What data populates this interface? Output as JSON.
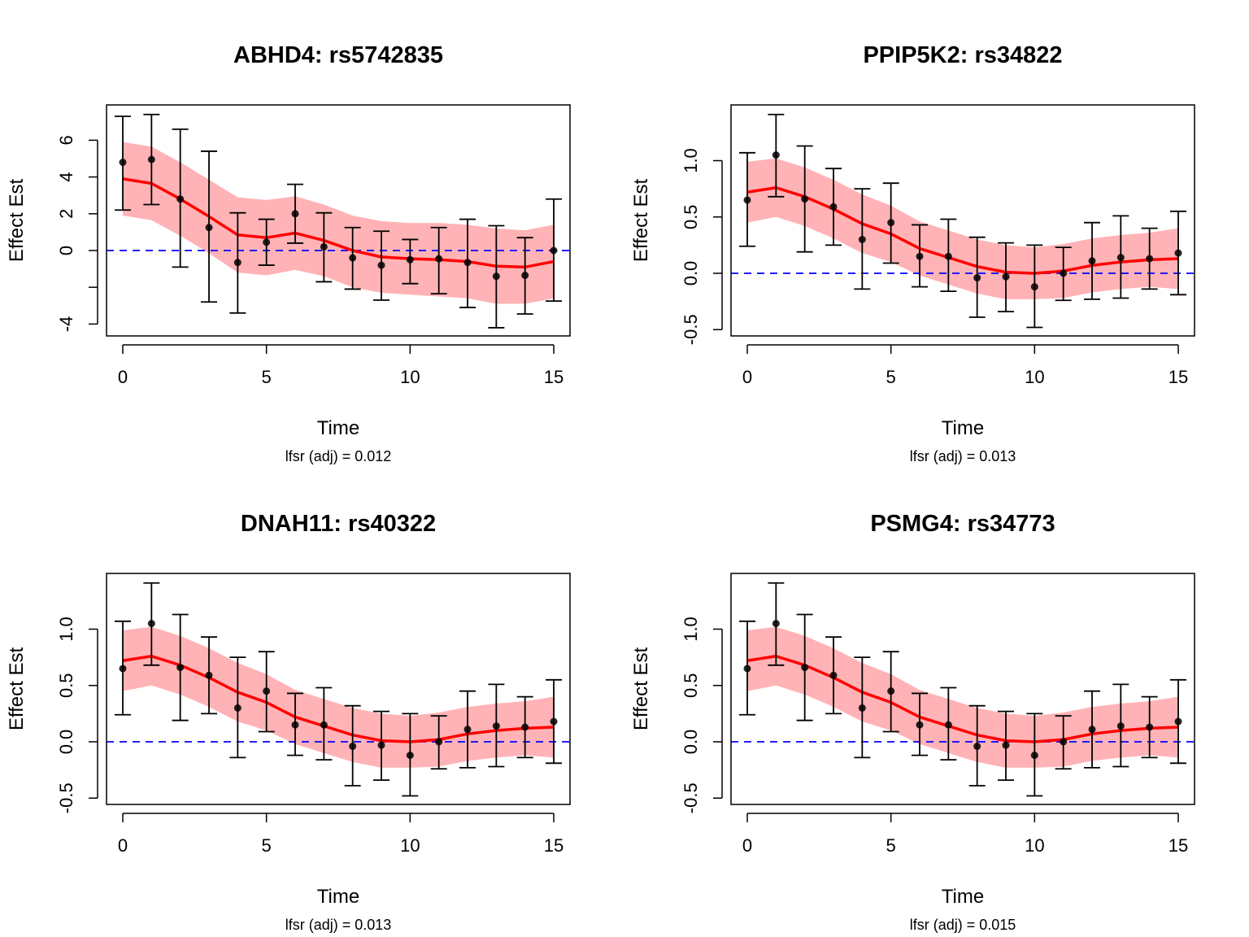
{
  "chart_data": [
    {
      "type": "line",
      "title": "ABHD4: rs5742835",
      "xlabel": "Time",
      "ylabel": "Effect Est",
      "subtitle": "lfsr (adj) = 0.012",
      "xlim": [
        0,
        15
      ],
      "ylim": [
        -4.5,
        7.7
      ],
      "xticks": [
        0,
        5,
        10,
        15
      ],
      "xtick_labels": [
        "0",
        "5",
        "10",
        "15"
      ],
      "yticks": [
        -4,
        -2,
        0,
        2,
        4,
        6
      ],
      "ytick_labels": [
        "-4",
        "",
        "0",
        "2",
        "4",
        "6"
      ],
      "reference_line": 0,
      "x": [
        0,
        1,
        2,
        3,
        4,
        5,
        6,
        7,
        8,
        9,
        10,
        11,
        12,
        13,
        14,
        15
      ],
      "points": [
        4.8,
        4.95,
        2.8,
        1.25,
        -0.65,
        0.45,
        2.0,
        0.2,
        -0.4,
        -0.8,
        -0.5,
        -0.45,
        -0.65,
        -1.4,
        -1.35,
        0.0
      ],
      "err_upper": [
        7.3,
        7.4,
        6.6,
        5.4,
        2.05,
        1.7,
        3.6,
        2.05,
        1.25,
        1.05,
        0.6,
        1.25,
        1.7,
        1.35,
        0.7,
        2.8
      ],
      "err_lower": [
        2.2,
        2.5,
        -0.9,
        -2.8,
        -3.4,
        -0.8,
        0.4,
        -1.7,
        -2.1,
        -2.7,
        -1.8,
        -2.35,
        -3.1,
        -4.2,
        -3.45,
        -2.75
      ],
      "smooth": [
        3.9,
        3.65,
        2.8,
        1.85,
        0.85,
        0.7,
        0.95,
        0.55,
        0.0,
        -0.35,
        -0.45,
        -0.5,
        -0.6,
        -0.85,
        -0.9,
        -0.6
      ],
      "band_upper": [
        5.9,
        5.65,
        4.8,
        3.85,
        2.9,
        2.75,
        2.95,
        2.5,
        1.9,
        1.6,
        1.5,
        1.5,
        1.4,
        1.2,
        1.1,
        1.4
      ],
      "band_lower": [
        1.9,
        1.65,
        0.8,
        -0.15,
        -1.2,
        -1.35,
        -1.05,
        -1.4,
        -2.0,
        -2.3,
        -2.4,
        -2.5,
        -2.6,
        -2.9,
        -2.9,
        -2.6
      ]
    },
    {
      "type": "line",
      "title": "PPIP5K2: rs34822",
      "xlabel": "Time",
      "ylabel": "Effect Est",
      "subtitle": "lfsr (adj) = 0.013",
      "xlim": [
        0,
        15
      ],
      "ylim": [
        -0.55,
        1.5
      ],
      "xticks": [
        0,
        5,
        10,
        15
      ],
      "xtick_labels": [
        "0",
        "5",
        "10",
        "15"
      ],
      "yticks": [
        -0.5,
        0.0,
        0.5,
        1.0
      ],
      "ytick_labels": [
        "-0.5",
        "0.0",
        "0.5",
        "1.0"
      ],
      "reference_line": 0,
      "x": [
        0,
        1,
        2,
        3,
        4,
        5,
        6,
        7,
        8,
        9,
        10,
        11,
        12,
        13,
        14,
        15
      ],
      "points": [
        0.65,
        1.05,
        0.66,
        0.59,
        0.3,
        0.45,
        0.15,
        0.15,
        -0.04,
        -0.03,
        -0.12,
        0.0,
        0.11,
        0.14,
        0.13,
        0.18
      ],
      "err_upper": [
        1.07,
        1.41,
        1.13,
        0.93,
        0.75,
        0.8,
        0.43,
        0.48,
        0.32,
        0.27,
        0.25,
        0.23,
        0.45,
        0.51,
        0.4,
        0.55
      ],
      "err_lower": [
        0.24,
        0.68,
        0.19,
        0.25,
        -0.14,
        0.09,
        -0.12,
        -0.16,
        -0.39,
        -0.34,
        -0.48,
        -0.24,
        -0.23,
        -0.22,
        -0.14,
        -0.19
      ],
      "smooth": [
        0.72,
        0.76,
        0.68,
        0.57,
        0.44,
        0.35,
        0.22,
        0.14,
        0.06,
        0.01,
        0.0,
        0.02,
        0.07,
        0.1,
        0.12,
        0.13
      ],
      "band_upper": [
        0.99,
        1.02,
        0.94,
        0.83,
        0.7,
        0.6,
        0.46,
        0.38,
        0.3,
        0.25,
        0.23,
        0.26,
        0.31,
        0.34,
        0.36,
        0.4
      ],
      "band_lower": [
        0.45,
        0.5,
        0.42,
        0.31,
        0.18,
        0.1,
        -0.02,
        -0.1,
        -0.18,
        -0.23,
        -0.23,
        -0.22,
        -0.17,
        -0.14,
        -0.12,
        -0.14
      ]
    },
    {
      "type": "line",
      "title": "DNAH11: rs40322",
      "xlabel": "Time",
      "ylabel": "Effect Est",
      "subtitle": "lfsr (adj) = 0.013",
      "xlim": [
        0,
        15
      ],
      "ylim": [
        -0.55,
        1.5
      ],
      "xticks": [
        0,
        5,
        10,
        15
      ],
      "xtick_labels": [
        "0",
        "5",
        "10",
        "15"
      ],
      "yticks": [
        -0.5,
        0.0,
        0.5,
        1.0
      ],
      "ytick_labels": [
        "-0.5",
        "0.0",
        "0.5",
        "1.0"
      ],
      "reference_line": 0,
      "x": [
        0,
        1,
        2,
        3,
        4,
        5,
        6,
        7,
        8,
        9,
        10,
        11,
        12,
        13,
        14,
        15
      ],
      "points": [
        0.65,
        1.05,
        0.66,
        0.59,
        0.3,
        0.45,
        0.15,
        0.15,
        -0.04,
        -0.03,
        -0.12,
        0.0,
        0.11,
        0.14,
        0.13,
        0.18
      ],
      "err_upper": [
        1.07,
        1.41,
        1.13,
        0.93,
        0.75,
        0.8,
        0.43,
        0.48,
        0.32,
        0.27,
        0.25,
        0.23,
        0.45,
        0.51,
        0.4,
        0.55
      ],
      "err_lower": [
        0.24,
        0.68,
        0.19,
        0.25,
        -0.14,
        0.09,
        -0.12,
        -0.16,
        -0.39,
        -0.34,
        -0.48,
        -0.24,
        -0.23,
        -0.22,
        -0.14,
        -0.19
      ],
      "smooth": [
        0.72,
        0.76,
        0.68,
        0.57,
        0.44,
        0.35,
        0.22,
        0.14,
        0.06,
        0.01,
        0.0,
        0.02,
        0.07,
        0.1,
        0.12,
        0.13
      ],
      "band_upper": [
        0.99,
        1.02,
        0.94,
        0.83,
        0.7,
        0.6,
        0.46,
        0.38,
        0.3,
        0.25,
        0.23,
        0.26,
        0.31,
        0.34,
        0.36,
        0.4
      ],
      "band_lower": [
        0.45,
        0.5,
        0.42,
        0.31,
        0.18,
        0.1,
        -0.02,
        -0.1,
        -0.18,
        -0.23,
        -0.23,
        -0.22,
        -0.17,
        -0.14,
        -0.12,
        -0.14
      ]
    },
    {
      "type": "line",
      "title": "PSMG4: rs34773",
      "xlabel": "Time",
      "ylabel": "Effect Est",
      "subtitle": "lfsr (adj) = 0.015",
      "xlim": [
        0,
        15
      ],
      "ylim": [
        -0.55,
        1.5
      ],
      "xticks": [
        0,
        5,
        10,
        15
      ],
      "xtick_labels": [
        "0",
        "5",
        "10",
        "15"
      ],
      "yticks": [
        -0.5,
        0.0,
        0.5,
        1.0
      ],
      "ytick_labels": [
        "-0.5",
        "0.0",
        "0.5",
        "1.0"
      ],
      "reference_line": 0,
      "x": [
        0,
        1,
        2,
        3,
        4,
        5,
        6,
        7,
        8,
        9,
        10,
        11,
        12,
        13,
        14,
        15
      ],
      "points": [
        0.65,
        1.05,
        0.66,
        0.59,
        0.3,
        0.45,
        0.15,
        0.15,
        -0.04,
        -0.03,
        -0.12,
        0.0,
        0.11,
        0.14,
        0.13,
        0.18
      ],
      "err_upper": [
        1.07,
        1.41,
        1.13,
        0.93,
        0.75,
        0.8,
        0.43,
        0.48,
        0.32,
        0.27,
        0.25,
        0.23,
        0.45,
        0.51,
        0.4,
        0.55
      ],
      "err_lower": [
        0.24,
        0.68,
        0.19,
        0.25,
        -0.14,
        0.09,
        -0.12,
        -0.16,
        -0.39,
        -0.34,
        -0.48,
        -0.24,
        -0.23,
        -0.22,
        -0.14,
        -0.19
      ],
      "smooth": [
        0.72,
        0.76,
        0.68,
        0.57,
        0.44,
        0.35,
        0.22,
        0.14,
        0.06,
        0.01,
        0.0,
        0.02,
        0.07,
        0.1,
        0.12,
        0.13
      ],
      "band_upper": [
        0.99,
        1.02,
        0.94,
        0.83,
        0.7,
        0.6,
        0.46,
        0.38,
        0.3,
        0.25,
        0.23,
        0.26,
        0.31,
        0.34,
        0.36,
        0.4
      ],
      "band_lower": [
        0.45,
        0.5,
        0.42,
        0.31,
        0.18,
        0.1,
        -0.02,
        -0.1,
        -0.18,
        -0.23,
        -0.23,
        -0.22,
        -0.17,
        -0.14,
        -0.12,
        -0.14
      ]
    }
  ],
  "colors": {
    "smooth_line": "#ff0000",
    "band": "#ffb3b6",
    "reference_line": "#0000ff",
    "points": "#000000",
    "error_bars": "#000000"
  }
}
